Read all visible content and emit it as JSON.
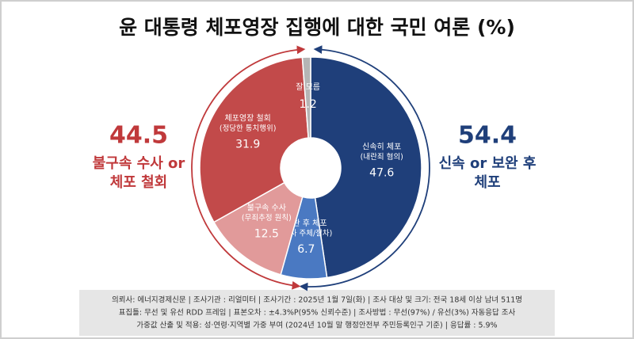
{
  "chart_data": {
    "type": "donut",
    "title": "윤 대통령 체포영장 집행에 대한 국민 여론 (%)",
    "categories": [
      "신속히 체포",
      "보완 후 체포",
      "불구속 수사",
      "체포영장 철회",
      "잘 모름"
    ],
    "category_notes": [
      "(내란죄 혐의)",
      "(수사 주체/절차)",
      "(무죄추정 원칙)",
      "(정당한 통치행위)",
      null
    ],
    "values": [
      47.6,
      6.7,
      12.5,
      31.9,
      1.2
    ],
    "colors": [
      "#1f3f7a",
      "#4a79c2",
      "#e19a9a",
      "#c24a4a",
      "#b5b5b5"
    ],
    "summaries": [
      {
        "value": 44.5,
        "lines": [
          "불구속 수사 or",
          "체포 철회"
        ],
        "color": "#c0393b"
      },
      {
        "value": 54.4,
        "lines": [
          "신속 or 보완 후",
          "체포"
        ],
        "color": "#1f3f7a"
      }
    ],
    "footer": [
      "의뢰사: 에너지경제신문 | 조사기관 : 리얼미터 | 조사기간 : 2025년 1월 7일(화) | 조사 대상 및 크기: 전국 18세 이상 남녀 511명",
      "표집틀: 무선 및 유선 RDD 프레임 | 표본오차 : ±4.3%P(95% 신뢰수준) | 조사방법 : 무선(97%) / 유선(3%) 자동응답 조사",
      "가중값 산출 및 적용: 성·연령·지역별 가중 부여 (2024년 10월 말 행정안전부 주민등록인구 기준) | 응답률 : 5.9%"
    ]
  }
}
